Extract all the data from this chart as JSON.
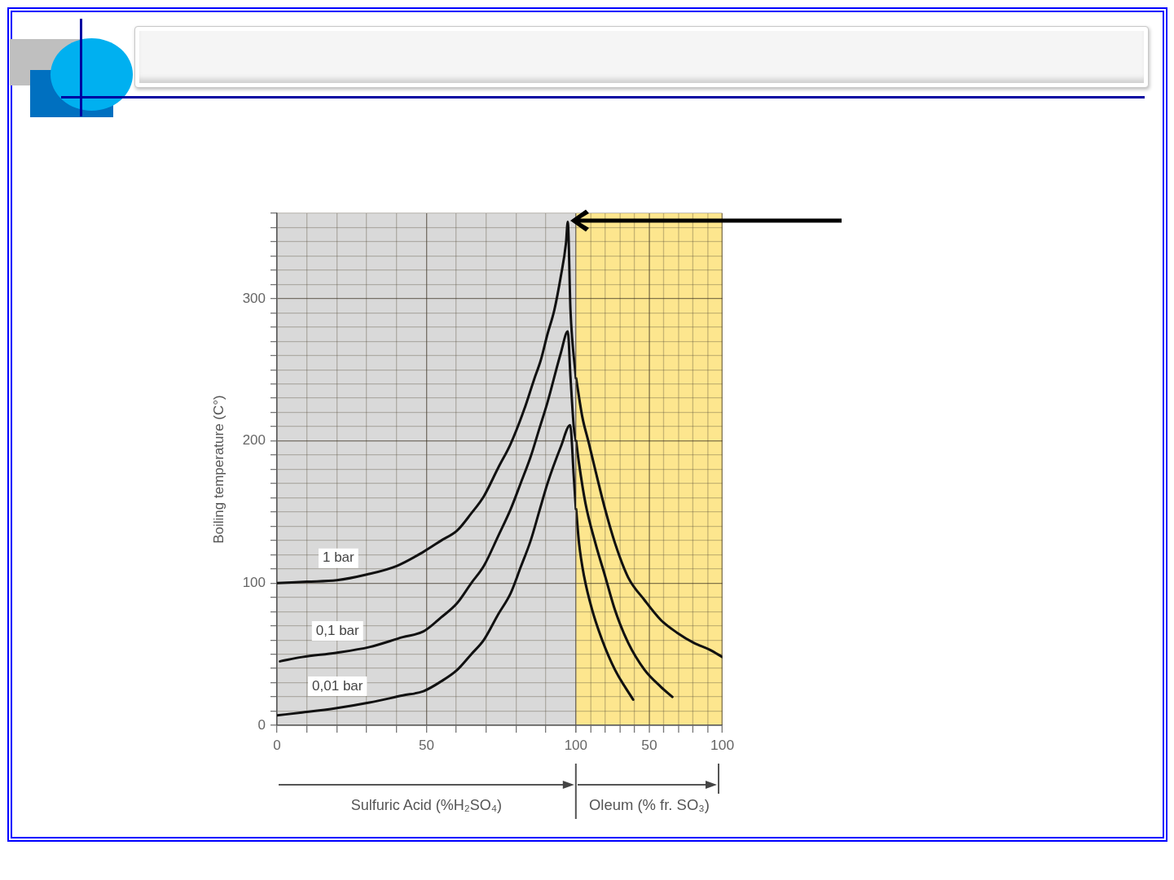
{
  "chart_data": [
    {
      "type": "line",
      "ylabel": "Boiling temperature (C°)",
      "xlabel": "Sulfuric Acid (%H₂SO₄)",
      "xlim": [
        0,
        100
      ],
      "ylim": [
        0,
        360
      ],
      "xticks": [
        0,
        {
          "value": 10,
          "label": null
        },
        {
          "value": 20,
          "label": null
        },
        {
          "value": 30,
          "label": null
        },
        {
          "value": 40,
          "label": null
        },
        50,
        {
          "value": 60,
          "label": null
        },
        {
          "value": 70,
          "label": null
        },
        {
          "value": 80,
          "label": null
        },
        {
          "value": 90,
          "label": null
        },
        100
      ],
      "yticks": [
        0,
        {
          "value": 10,
          "label": null
        },
        {
          "value": 20,
          "label": null
        },
        {
          "value": 30,
          "label": null
        },
        {
          "value": 40,
          "label": null
        },
        {
          "value": 50,
          "label": null
        },
        {
          "value": 60,
          "label": null
        },
        {
          "value": 70,
          "label": null
        },
        {
          "value": 80,
          "label": null
        },
        {
          "value": 90,
          "label": null
        },
        100,
        {
          "value": 110,
          "label": null
        },
        {
          "value": 120,
          "label": null
        },
        {
          "value": 130,
          "label": null
        },
        {
          "value": 140,
          "label": null
        },
        {
          "value": 150,
          "label": null
        },
        {
          "value": 160,
          "label": null
        },
        {
          "value": 170,
          "label": null
        },
        {
          "value": 180,
          "label": null
        },
        {
          "value": 190,
          "label": null
        },
        200,
        {
          "value": 210,
          "label": null
        },
        {
          "value": 220,
          "label": null
        },
        {
          "value": 230,
          "label": null
        },
        {
          "value": 240,
          "label": null
        },
        {
          "value": 250,
          "label": null
        },
        {
          "value": 260,
          "label": null
        },
        {
          "value": 270,
          "label": null
        },
        {
          "value": 280,
          "label": null
        },
        {
          "value": 290,
          "label": null
        },
        300,
        {
          "value": 310,
          "label": null
        },
        {
          "value": 320,
          "label": null
        },
        {
          "value": 330,
          "label": null
        },
        {
          "value": 340,
          "label": null
        },
        {
          "value": 350,
          "label": null
        },
        {
          "value": 360,
          "label": null
        }
      ],
      "bands": [
        {
          "axis": "x",
          "from": 0,
          "to": 100,
          "color": "#d9d9d9"
        }
      ],
      "series": [
        {
          "name": "1 bar",
          "color": "#111111",
          "x": [
            0,
            10,
            20,
            30,
            40,
            49,
            55,
            60.3,
            65,
            69.2,
            74,
            78.2,
            82.7,
            86,
            88.3,
            90.5,
            92.8,
            95,
            96.7,
            97.3,
            98.2,
            100
          ],
          "values": [
            100,
            101,
            102,
            106,
            112,
            122,
            130,
            137,
            149,
            161,
            181,
            198,
            222,
            243,
            257,
            275,
            292,
            316,
            339,
            354,
            292,
            244
          ]
        },
        {
          "name": "0,1 bar",
          "color": "#111111",
          "x": [
            1,
            8.4,
            19.7,
            30.9,
            42.1,
            49,
            55,
            60.3,
            65,
            69.2,
            74,
            78.2,
            81.5,
            84.9,
            87.7,
            90.5,
            95,
            97.3,
            98.2,
            99.3,
            100
          ],
          "values": [
            45,
            48,
            51,
            55,
            62,
            66,
            76,
            86,
            100,
            112,
            133,
            152,
            170,
            189,
            208,
            227,
            262,
            277,
            245,
            210,
            200
          ]
        },
        {
          "name": "0,01 bar",
          "color": "#111111",
          "x": [
            0,
            8.4,
            19.7,
            30.9,
            42.1,
            49,
            55,
            60.3,
            65,
            69.2,
            74,
            78.2,
            81.5,
            84.9,
            87.7,
            90.5,
            95,
            98.1,
            99.3,
            100
          ],
          "values": [
            7,
            9,
            12,
            16,
            21,
            24,
            31,
            39,
            50,
            60,
            78,
            93,
            111,
            130,
            150,
            170,
            196,
            211,
            175,
            152
          ]
        }
      ],
      "grid": true,
      "legend": false,
      "marker": "none",
      "line_style": "solid"
    },
    {
      "type": "line",
      "xlabel": "Oleum (% fr. SO₃)",
      "tick_labels": "x",
      "xlim": [
        0,
        100
      ],
      "ylim": [
        0,
        360
      ],
      "xticks": [
        {
          "value": 0,
          "label": null
        },
        {
          "value": 10,
          "label": null
        },
        {
          "value": 20,
          "label": null
        },
        {
          "value": 30,
          "label": null
        },
        {
          "value": 40,
          "label": null
        },
        50,
        {
          "value": 60,
          "label": null
        },
        {
          "value": 70,
          "label": null
        },
        {
          "value": 80,
          "label": null
        },
        {
          "value": 90,
          "label": null
        },
        100
      ],
      "yticks": [
        0,
        {
          "value": 10,
          "label": null
        },
        {
          "value": 20,
          "label": null
        },
        {
          "value": 30,
          "label": null
        },
        {
          "value": 40,
          "label": null
        },
        {
          "value": 50,
          "label": null
        },
        {
          "value": 60,
          "label": null
        },
        {
          "value": 70,
          "label": null
        },
        {
          "value": 80,
          "label": null
        },
        {
          "value": 90,
          "label": null
        },
        100,
        {
          "value": 110,
          "label": null
        },
        {
          "value": 120,
          "label": null
        },
        {
          "value": 130,
          "label": null
        },
        {
          "value": 140,
          "label": null
        },
        {
          "value": 150,
          "label": null
        },
        {
          "value": 160,
          "label": null
        },
        {
          "value": 170,
          "label": null
        },
        {
          "value": 180,
          "label": null
        },
        {
          "value": 190,
          "label": null
        },
        200,
        {
          "value": 210,
          "label": null
        },
        {
          "value": 220,
          "label": null
        },
        {
          "value": 230,
          "label": null
        },
        {
          "value": 240,
          "label": null
        },
        {
          "value": 250,
          "label": null
        },
        {
          "value": 260,
          "label": null
        },
        {
          "value": 270,
          "label": null
        },
        {
          "value": 280,
          "label": null
        },
        {
          "value": 290,
          "label": null
        },
        300,
        {
          "value": 310,
          "label": null
        },
        {
          "value": 320,
          "label": null
        },
        {
          "value": 330,
          "label": null
        },
        {
          "value": 340,
          "label": null
        },
        {
          "value": 350,
          "label": null
        },
        {
          "value": 360,
          "label": null
        }
      ],
      "bands": [
        {
          "axis": "x",
          "from": 0,
          "to": 100,
          "color": "#fde68e"
        }
      ],
      "series": [
        {
          "color": "#111111",
          "x": [
            0,
            4.2,
            8.8,
            13,
            19.8,
            26.6,
            35.6,
            46.8,
            58,
            69.2,
            80.4,
            91.6,
            100
          ],
          "values": [
            244,
            217,
            198,
            180,
            152,
            128,
            104,
            88,
            74,
            65,
            58,
            53,
            48
          ]
        },
        {
          "color": "#111111",
          "x": [
            0,
            2,
            6.4,
            13.2,
            19.8,
            26.6,
            35.6,
            46.8,
            58,
            65.8
          ],
          "values": [
            200,
            184,
            156,
            128,
            105,
            81,
            58,
            39,
            27,
            20
          ]
        },
        {
          "color": "#111111",
          "x": [
            0,
            2,
            5.4,
            11,
            17.8,
            26.6,
            39
          ],
          "values": [
            152,
            128,
            105,
            81,
            60,
            39,
            18
          ]
        }
      ],
      "grid": true,
      "legend": false,
      "marker": "none",
      "line_style": "solid"
    }
  ]
}
